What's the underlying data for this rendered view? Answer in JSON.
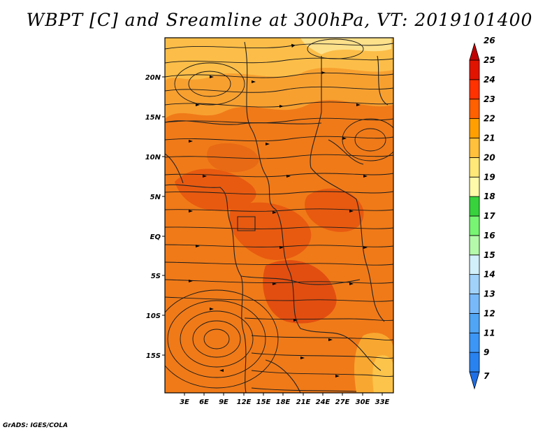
{
  "title": "WBPT [C] and Sreamline at 300hPa, VT: 2019101400",
  "credit": "GrADS: IGES/COLA",
  "map": {
    "lat_labels": [
      "20N",
      "15N",
      "10N",
      "5N",
      "EQ",
      "5S",
      "10S",
      "15S"
    ],
    "lon_labels": [
      "3E",
      "6E",
      "9E",
      "12E",
      "15E",
      "18E",
      "21E",
      "24E",
      "27E",
      "30E",
      "33E"
    ],
    "lat_values": [
      20,
      15,
      10,
      5,
      0,
      -5,
      -10,
      -15
    ],
    "lon_values": [
      3,
      6,
      9,
      12,
      15,
      18,
      21,
      24,
      27,
      30,
      33
    ],
    "lat_range": [
      -19.5,
      24.5
    ],
    "lon_range": [
      0.5,
      35
    ]
  },
  "colorbar": {
    "labels": [
      "7",
      "9",
      "11",
      "12",
      "13",
      "14",
      "15",
      "16",
      "17",
      "18",
      "19",
      "20",
      "21",
      "22",
      "23",
      "24",
      "25",
      "26"
    ],
    "colors": [
      "#1e6ee6",
      "#2882f0",
      "#3c96f5",
      "#50a5f5",
      "#78b9fa",
      "#a0d2fa",
      "#d2f0fa",
      "#b4faaa",
      "#78f573",
      "#37d23c",
      "#fffaaa",
      "#ffe878",
      "#ffc03c",
      "#ffa000",
      "#ff6000",
      "#ff3200",
      "#e11400",
      "#c00000"
    ]
  }
}
